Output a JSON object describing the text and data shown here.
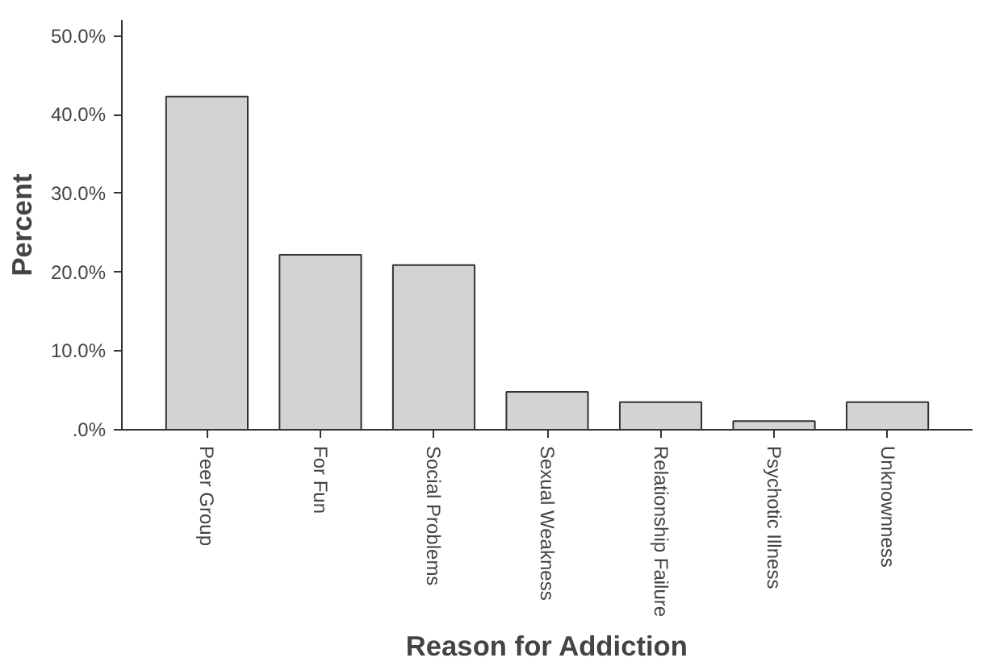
{
  "chart_data": {
    "type": "bar",
    "xlabel": "Reason for Addiction",
    "ylabel": "Percent",
    "categories": [
      "Peer Group",
      "For Fun",
      "Social Problems",
      "Sexual Weakness",
      "Relationship Failure",
      "Psychotic Illness",
      "Unknownness"
    ],
    "values": [
      42.3,
      22.2,
      20.9,
      4.8,
      3.5,
      1.1,
      3.5
    ],
    "color": "#d3d3d3",
    "ylim": [
      0,
      52
    ],
    "yticks": [
      {
        "value": 0,
        "label": ".0%"
      },
      {
        "value": 10,
        "label": "10.0%"
      },
      {
        "value": 20,
        "label": "20.0%"
      },
      {
        "value": 30,
        "label": "30.0%"
      },
      {
        "value": 40,
        "label": "40.0%"
      },
      {
        "value": 50,
        "label": "50.0%"
      }
    ],
    "grid": false
  }
}
